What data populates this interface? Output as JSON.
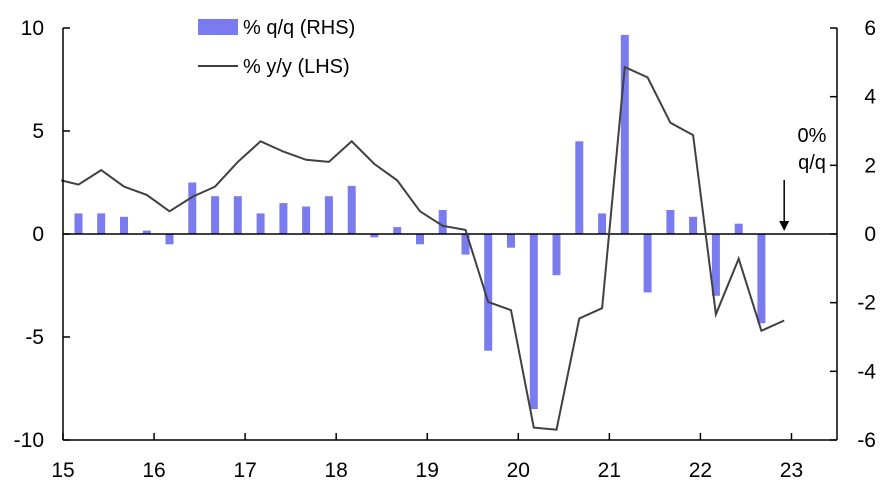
{
  "chart_data": {
    "type": "bar+line",
    "colors": {
      "bar": "#7b7bf0",
      "line": "#404040",
      "axis": "#000000"
    },
    "x_ticks": [
      "15",
      "16",
      "17",
      "18",
      "19",
      "20",
      "21",
      "22",
      "23"
    ],
    "x_tick_values": [
      2015,
      2016,
      2017,
      2018,
      2019,
      2020,
      2021,
      2022,
      2023
    ],
    "x_range": [
      2015,
      2023.5
    ],
    "left_axis": {
      "ticks": [
        "10",
        "5",
        "0",
        "-5",
        "-10"
      ],
      "tick_values": [
        10,
        5,
        0,
        -5,
        -10
      ],
      "range": [
        -10,
        10
      ]
    },
    "right_axis": {
      "ticks": [
        "6",
        "4",
        "2",
        "0",
        "-2",
        "-4",
        "-6"
      ],
      "tick_values": [
        6,
        4,
        2,
        0,
        -2,
        -4,
        -6
      ],
      "range": [
        -6,
        6
      ]
    },
    "legend": {
      "bar_label": "% q/q (RHS)",
      "line_label": "% y/y (LHS)",
      "placement": "top-center"
    },
    "annotation": {
      "line1": "0%",
      "line2": "q/q",
      "arrow_x": 2022.92,
      "arrow_y": 0
    },
    "series": [
      {
        "name": "% q/q (RHS)",
        "type": "bar",
        "axis": "right",
        "x": [
          2015.17,
          2015.42,
          2015.67,
          2015.92,
          2016.17,
          2016.42,
          2016.67,
          2016.92,
          2017.17,
          2017.42,
          2017.67,
          2017.92,
          2018.17,
          2018.42,
          2018.67,
          2018.92,
          2019.17,
          2019.42,
          2019.67,
          2019.92,
          2020.17,
          2020.42,
          2020.67,
          2020.92,
          2021.17,
          2021.42,
          2021.67,
          2021.92,
          2022.17,
          2022.42,
          2022.67
        ],
        "values": [
          0.6,
          0.6,
          0.5,
          0.1,
          -0.3,
          1.5,
          1.1,
          1.1,
          0.6,
          0.9,
          0.8,
          1.1,
          1.4,
          -0.1,
          0.2,
          -0.3,
          0.7,
          -0.6,
          -3.4,
          -0.4,
          -5.1,
          -1.2,
          2.7,
          0.6,
          5.8,
          -1.7,
          0.7,
          0.5,
          -1.8,
          0.3,
          -2.6
        ]
      },
      {
        "name": "% y/y (LHS)",
        "type": "line",
        "axis": "left",
        "x": [
          2014.98,
          2015.17,
          2015.42,
          2015.67,
          2015.92,
          2016.17,
          2016.42,
          2016.67,
          2016.92,
          2017.17,
          2017.42,
          2017.67,
          2017.92,
          2018.17,
          2018.42,
          2018.67,
          2018.92,
          2019.17,
          2019.42,
          2019.67,
          2019.92,
          2020.17,
          2020.42,
          2020.67,
          2020.92,
          2021.17,
          2021.42,
          2021.67,
          2021.92,
          2022.17,
          2022.42,
          2022.67,
          2022.92
        ],
        "values": [
          2.6,
          2.4,
          3.1,
          2.3,
          1.9,
          1.1,
          1.8,
          2.3,
          3.5,
          4.5,
          4.0,
          3.6,
          3.5,
          4.5,
          3.4,
          2.6,
          1.1,
          0.4,
          0.2,
          -3.3,
          -3.7,
          -9.4,
          -9.5,
          -4.1,
          -3.6,
          8.1,
          7.6,
          5.4,
          4.8,
          -3.9,
          -1.2,
          -4.7,
          -4.2
        ]
      }
    ]
  }
}
